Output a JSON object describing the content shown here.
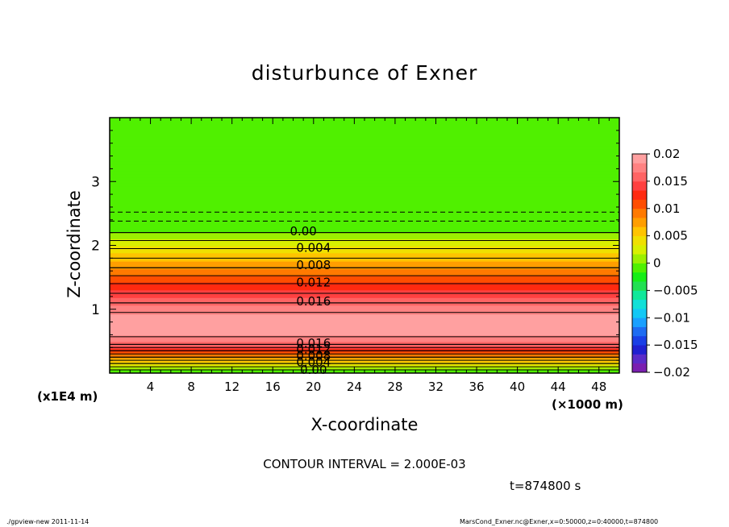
{
  "chart_data": {
    "type": "contour",
    "title": "disturbunce of Exner",
    "xlabel": "X-coordinate",
    "ylabel": "Z-coordinate",
    "x_unit": "(×1000 m)",
    "y_unit": "(x1E4 m)",
    "x_ticks": [
      4,
      8,
      12,
      16,
      20,
      24,
      28,
      32,
      36,
      40,
      44,
      48
    ],
    "y_ticks": [
      1,
      2,
      3
    ],
    "xlim": [
      0,
      50
    ],
    "ylim": [
      0,
      4
    ],
    "colorbar": {
      "min": -0.02,
      "max": 0.02,
      "tick_labels": [
        "0.02",
        "0.015",
        "0.01",
        "0.005",
        "0",
        "−0.005",
        "−0.01",
        "−0.015",
        "−0.02"
      ],
      "colors": [
        "#7a1fb0",
        "#5b2bc8",
        "#2020d0",
        "#1a3fe6",
        "#1e6cf2",
        "#19a0ff",
        "#12c8f5",
        "#11e0d8",
        "#10e89a",
        "#22e052",
        "#16ee16",
        "#50f000",
        "#9cf000",
        "#d8f000",
        "#f0e000",
        "#ffc400",
        "#ff9e00",
        "#ff7a00",
        "#ff4e00",
        "#ff2a10",
        "#ff4040",
        "#ff6464",
        "#ff8282",
        "#ffa0a0"
      ]
    },
    "profile": [
      {
        "z": 0.0,
        "value": -0.001
      },
      {
        "z": 0.05,
        "value": 0.0
      },
      {
        "z": 0.15,
        "value": 0.004
      },
      {
        "z": 0.25,
        "value": 0.008
      },
      {
        "z": 0.35,
        "value": 0.012
      },
      {
        "z": 0.45,
        "value": 0.016
      },
      {
        "z": 0.6,
        "value": 0.0185
      },
      {
        "z": 0.8,
        "value": 0.0195
      },
      {
        "z": 1.0,
        "value": 0.0175
      },
      {
        "z": 1.1,
        "value": 0.016
      },
      {
        "z": 1.4,
        "value": 0.012
      },
      {
        "z": 1.65,
        "value": 0.008
      },
      {
        "z": 1.95,
        "value": 0.004
      },
      {
        "z": 2.2,
        "value": 0.0
      },
      {
        "z": 2.4,
        "value": -0.0005
      },
      {
        "z": 2.6,
        "value": -0.0012
      },
      {
        "z": 4.0,
        "value": -0.0012
      }
    ],
    "contour_labels": [
      {
        "text": "0.00",
        "x": 19,
        "z": 2.22
      },
      {
        "text": "0.004",
        "x": 20,
        "z": 1.96
      },
      {
        "text": "0.008",
        "x": 20,
        "z": 1.69
      },
      {
        "text": "0.012",
        "x": 20,
        "z": 1.42
      },
      {
        "text": "0.016",
        "x": 20,
        "z": 1.12
      },
      {
        "text": "0.016",
        "x": 20,
        "z": 0.47
      },
      {
        "text": "0.012",
        "x": 20,
        "z": 0.37
      },
      {
        "text": "0.008",
        "x": 20,
        "z": 0.27
      },
      {
        "text": "0.004",
        "x": 20,
        "z": 0.17
      },
      {
        "text": "0.00",
        "x": 20,
        "z": 0.05
      }
    ],
    "dashed_levels_z": [
      2.38,
      2.52
    ],
    "contour_interval": "CONTOUR INTERVAL = 2.000E-03",
    "time": "t=874800  s"
  },
  "footer": {
    "left": "./gpview-new   2011-11-14",
    "right": "MarsCond_Exner.nc@Exner,x=0:50000,z=0:40000,t=874800"
  }
}
